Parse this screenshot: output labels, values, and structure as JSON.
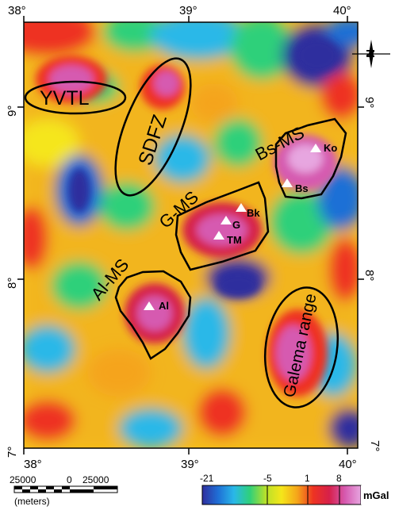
{
  "map": {
    "lon_ticks": [
      "38°",
      "39°",
      "40°"
    ],
    "lat_ticks": [
      "9°",
      "8°",
      "7°"
    ],
    "features": [
      {
        "id": "yvtl",
        "label": "YVTL"
      },
      {
        "id": "sdfz",
        "label": "SDFZ"
      },
      {
        "id": "bs-ms",
        "label": "Bs-MS"
      },
      {
        "id": "g-ms",
        "label": "G-MS"
      },
      {
        "id": "al-ms",
        "label": "Al-MS"
      },
      {
        "id": "galema",
        "label": "Galema range"
      }
    ],
    "stations": [
      {
        "id": "ko",
        "label": "Ko"
      },
      {
        "id": "bs",
        "label": "Bs"
      },
      {
        "id": "bk",
        "label": "Bk"
      },
      {
        "id": "g",
        "label": "G"
      },
      {
        "id": "tm",
        "label": "TM"
      },
      {
        "id": "al",
        "label": "Al"
      }
    ],
    "north_arrow": "N"
  },
  "scale_bar": {
    "labels": [
      "25000",
      "0",
      "25000"
    ],
    "units": "(meters)"
  },
  "colorbar": {
    "tick_labels": [
      "-21",
      "-5",
      "1",
      "8"
    ],
    "unit": "mGal",
    "colors": [
      "#2f2f9e",
      "#1f6fd6",
      "#29b8e8",
      "#2fd07a",
      "#b8e02a",
      "#f5e61a",
      "#f5a41a",
      "#ee3322",
      "#d6204a",
      "#d65ab0",
      "#e7a6e0"
    ]
  }
}
